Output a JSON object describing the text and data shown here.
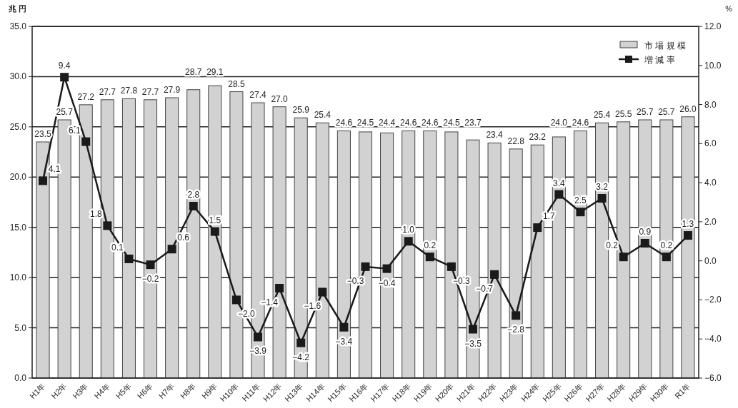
{
  "chart_data": {
    "type": "bar",
    "ylabel": "兆 円",
    "y2label": "%",
    "categories": [
      "H1年",
      "H2年",
      "H3年",
      "H4年",
      "H5年",
      "H6年",
      "H7年",
      "H8年",
      "H9年",
      "H10年",
      "H11年",
      "H12年",
      "H13年",
      "H14年",
      "H15年",
      "H16年",
      "H17年",
      "H18年",
      "H19年",
      "H20年",
      "H21年",
      "H22年",
      "H23年",
      "H24年",
      "H25年",
      "H26年",
      "H27年",
      "H28年",
      "H29年",
      "H30年",
      "R1年"
    ],
    "series": [
      {
        "name": "市 場 規 模",
        "type": "bar",
        "color": "#d2d2d2",
        "values": [
          23.5,
          25.7,
          27.2,
          27.7,
          27.8,
          27.7,
          27.9,
          28.7,
          29.1,
          28.5,
          27.4,
          27.0,
          25.9,
          25.4,
          24.6,
          24.5,
          24.4,
          24.6,
          24.6,
          24.5,
          23.7,
          23.4,
          22.8,
          23.2,
          24.0,
          24.6,
          25.4,
          25.5,
          25.7,
          25.7,
          26.0
        ],
        "value_labels": [
          "23.5",
          "25.7",
          "27.2",
          "27.7",
          "27.8",
          "27.7",
          "27.9",
          "28.7",
          "29.1",
          "28.5",
          "27.4",
          "27.0",
          "25.9",
          "25.4",
          "24.6",
          "24.5",
          "24.4",
          "24.6",
          "24.6",
          "24.5",
          "23.7",
          "23.4",
          "22.8",
          "23.2",
          "24.0",
          "24.6",
          "25.4",
          "25.5",
          "25.7",
          "25.7",
          "26.0"
        ]
      },
      {
        "name": "増 減 率",
        "type": "line",
        "axis": "y2",
        "color": "#1a1a1a",
        "marker": "square",
        "values": [
          4.1,
          9.4,
          6.1,
          1.8,
          0.1,
          -0.2,
          0.6,
          2.8,
          1.5,
          -2.0,
          -3.9,
          -1.4,
          -4.2,
          -1.6,
          -3.4,
          -0.3,
          -0.4,
          1.0,
          0.2,
          -0.3,
          -3.5,
          -0.7,
          -2.8,
          1.7,
          3.4,
          2.5,
          3.2,
          0.2,
          0.9,
          0.2,
          1.3
        ],
        "value_labels": [
          "4.1",
          "9.4",
          "6.1",
          "1.8",
          "0.1",
          "−0.2",
          "0.6",
          "2.8",
          "1.5",
          "−2.0",
          "−3.9",
          "−1.4",
          "−4.2",
          "−1.6",
          "−3.4",
          "−0.3",
          "−0.4",
          "1.0",
          "0.2",
          "−0.3",
          "−3.5",
          "−0.7",
          "−2.8",
          "1.7",
          "3.4",
          "2.5",
          "3.2",
          "0.2",
          "0.9",
          "0.2",
          "1.3"
        ]
      }
    ],
    "ylim": [
      0,
      35
    ],
    "yticks": [
      {
        "value": 0,
        "label": "0.0"
      },
      {
        "value": 5,
        "label": "5.0"
      },
      {
        "value": 10,
        "label": "10.0"
      },
      {
        "value": 15,
        "label": "15.0"
      },
      {
        "value": 20,
        "label": "20.0"
      },
      {
        "value": 25,
        "label": "25.0"
      },
      {
        "value": 30,
        "label": "30.0"
      },
      {
        "value": 35,
        "label": "35.0"
      }
    ],
    "y2lim": [
      -6,
      12
    ],
    "y2ticks": [
      {
        "value": -6,
        "label": "−6.0"
      },
      {
        "value": -4,
        "label": "−4.0"
      },
      {
        "value": -2,
        "label": "−2.0"
      },
      {
        "value": 0,
        "label": "0.0"
      },
      {
        "value": 2,
        "label": "2.0"
      },
      {
        "value": 4,
        "label": "4.0"
      },
      {
        "value": 6,
        "label": "6.0"
      },
      {
        "value": 8,
        "label": "8.0"
      },
      {
        "value": 10,
        "label": "10.0"
      },
      {
        "value": 12,
        "label": "12.0"
      }
    ],
    "grid": "y",
    "legend": "top right"
  }
}
